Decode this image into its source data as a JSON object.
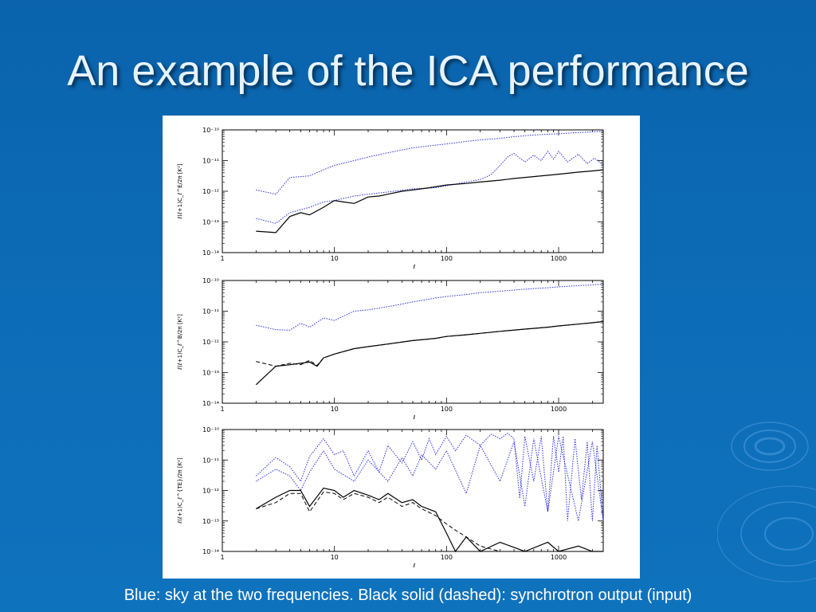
{
  "slide": {
    "title": "An example of the ICA performance",
    "caption": "Blue: sky at the two frequencies. Black solid (dashed): synchrotron output (input)"
  },
  "colors": {
    "background": "#0d6cb7",
    "sky": "#2a2ee0",
    "synchrotron": "#000000"
  },
  "chart_data": [
    {
      "type": "line",
      "xscale": "log",
      "yscale": "log",
      "xlim": [
        1,
        2500
      ],
      "ylim": [
        1e-14,
        1e-10
      ],
      "xlabel": "ℓ",
      "ylabel": "ℓ(ℓ+1)C_ℓ^E/2π [K²]",
      "xticks": [
        "1",
        "10",
        "100",
        "1000"
      ],
      "yticks": [
        "10⁻¹⁴",
        "10⁻¹³",
        "10⁻¹²",
        "10⁻¹¹",
        "10⁻¹⁰"
      ],
      "series": [
        {
          "style": "dotted",
          "color": "#2a2ee0",
          "x": [
            2,
            3,
            4,
            6,
            8,
            10,
            15,
            20,
            30,
            50,
            80,
            100,
            150,
            200,
            300,
            400,
            600,
            1000,
            1500,
            2000,
            2500
          ],
          "y": [
            1.1e-12,
            8e-13,
            2.8e-12,
            3.2e-12,
            5e-12,
            7e-12,
            1e-11,
            1.3e-11,
            1.8e-11,
            2.6e-11,
            3.2e-11,
            3.5e-11,
            4.2e-11,
            4.7e-11,
            5.3e-11,
            6e-11,
            6.8e-11,
            7.5e-11,
            8.2e-11,
            8.6e-11,
            9e-11
          ]
        },
        {
          "style": "dotted",
          "color": "#2a2ee0",
          "x": [
            2,
            3,
            4,
            6,
            8,
            10,
            15,
            20,
            30,
            50,
            80,
            100,
            150,
            200,
            250,
            300,
            350,
            400,
            500,
            600,
            700,
            800,
            900,
            1000,
            1200,
            1500,
            1800,
            2100,
            2500
          ],
          "y": [
            1.3e-13,
            9e-14,
            2e-13,
            3e-13,
            4.5e-13,
            5e-13,
            7e-13,
            8e-13,
            9.5e-13,
            1.2e-12,
            1.3e-12,
            1.5e-12,
            2e-12,
            2.4e-12,
            3.5e-12,
            7e-12,
            1.3e-11,
            1.7e-11,
            9e-12,
            1.5e-11,
            1e-11,
            2e-11,
            1.1e-11,
            2e-11,
            9e-12,
            1.6e-11,
            8e-12,
            1.2e-11,
            7e-12
          ]
        },
        {
          "style": "solid",
          "color": "#000000",
          "x": [
            2,
            3,
            4,
            5,
            6,
            8,
            10,
            12,
            15,
            20,
            25,
            30,
            40,
            50,
            70,
            100,
            150,
            200,
            300,
            400,
            600,
            1000,
            1500,
            2000,
            2500
          ],
          "y": [
            5e-14,
            4.5e-14,
            1.5e-13,
            2e-13,
            1.7e-13,
            3e-13,
            5e-13,
            4.5e-13,
            4e-13,
            6.5e-13,
            7e-13,
            8e-13,
            1e-12,
            1.1e-12,
            1.3e-12,
            1.6e-12,
            1.8e-12,
            2e-12,
            2.3e-12,
            2.6e-12,
            3e-12,
            3.6e-12,
            4.2e-12,
            4.6e-12,
            5e-12
          ]
        }
      ]
    },
    {
      "type": "line",
      "xscale": "log",
      "yscale": "log",
      "xlim": [
        1,
        2500
      ],
      "ylim": [
        1e-14,
        1e-10
      ],
      "xlabel": "ℓ",
      "ylabel": "ℓ(ℓ+1)C_ℓ^B/2π [K²]",
      "xticks": [
        "1",
        "10",
        "100",
        "1000"
      ],
      "yticks": [
        "10⁻¹⁴",
        "10⁻¹³",
        "10⁻¹²",
        "10⁻¹¹",
        "10⁻¹⁰"
      ],
      "series": [
        {
          "style": "dotted",
          "color": "#2a2ee0",
          "x": [
            2,
            3,
            4,
            5,
            6,
            8,
            10,
            15,
            20,
            30,
            50,
            80,
            100,
            150,
            200,
            300,
            500,
            800,
            1000,
            1500,
            2000,
            2500
          ],
          "y": [
            3.5e-12,
            2.5e-12,
            2.4e-12,
            4e-12,
            3e-12,
            6e-12,
            5e-12,
            1e-11,
            1.1e-11,
            1.4e-11,
            2e-11,
            2.7e-11,
            3e-11,
            3.5e-11,
            4e-11,
            4.5e-11,
            5.2e-11,
            5.8e-11,
            6.2e-11,
            6.8e-11,
            7.2e-11,
            7.6e-11
          ]
        },
        {
          "style": "dashed",
          "color": "#000000",
          "x": [
            2,
            3,
            4,
            5,
            6,
            7,
            8,
            10,
            15,
            20,
            30,
            50,
            80,
            100,
            150,
            200,
            300,
            500,
            800,
            1000,
            1500,
            2000,
            2500
          ],
          "y": [
            2.3e-13,
            1.6e-13,
            2e-13,
            1.8e-13,
            2.5e-13,
            1.7e-13,
            3e-13,
            4e-13,
            6e-13,
            7e-13,
            8.5e-13,
            1.1e-12,
            1.3e-12,
            1.5e-12,
            1.7e-12,
            1.9e-12,
            2.2e-12,
            2.6e-12,
            3e-12,
            3.3e-12,
            3.8e-12,
            4.2e-12,
            4.6e-12
          ]
        },
        {
          "style": "solid",
          "color": "#000000",
          "x": [
            2,
            3,
            4,
            5,
            6,
            7,
            8,
            10,
            15,
            20,
            30,
            50,
            80,
            100,
            150,
            200,
            300,
            500,
            800,
            1000,
            1500,
            2000,
            2500
          ],
          "y": [
            4e-14,
            1.6e-13,
            1.8e-13,
            2e-13,
            2.2e-13,
            1.6e-13,
            3e-13,
            4e-13,
            6e-13,
            7e-13,
            8.5e-13,
            1.1e-12,
            1.3e-12,
            1.5e-12,
            1.7e-12,
            1.9e-12,
            2.2e-12,
            2.6e-12,
            3e-12,
            3.3e-12,
            3.8e-12,
            4.2e-12,
            4.6e-12
          ]
        }
      ]
    },
    {
      "type": "line",
      "xscale": "log",
      "yscale": "log",
      "xlim": [
        1,
        2500
      ],
      "ylim": [
        1e-14,
        1e-10
      ],
      "xlabel": "ℓ",
      "ylabel": "ℓ(ℓ+1)C_ℓ^{TE}/2π [K²]",
      "xticks": [
        "1",
        "10",
        "100",
        "1000"
      ],
      "yticks": [
        "10⁻¹⁴",
        "10⁻¹³",
        "10⁻¹²",
        "10⁻¹¹",
        "10⁻¹⁰"
      ],
      "series": [
        {
          "style": "dotted",
          "color": "#2a2ee0",
          "x": [
            2,
            3,
            4,
            5,
            6,
            8,
            10,
            12,
            15,
            20,
            25,
            30,
            40,
            50,
            60,
            70,
            80,
            100,
            120,
            150,
            200,
            250,
            300,
            350,
            400,
            450,
            500,
            600,
            700,
            800,
            900,
            1000,
            1100,
            1200,
            1400,
            1600,
            1800,
            2000,
            2200,
            2500
          ],
          "y": [
            3e-12,
            1.2e-11,
            6e-12,
            2e-12,
            1.3e-11,
            5e-11,
            1.5e-11,
            2e-11,
            3e-12,
            2e-11,
            4e-12,
            3e-11,
            8e-12,
            4e-11,
            1e-11,
            5e-11,
            1.5e-11,
            6e-11,
            2e-11,
            6.5e-11,
            3e-11,
            7e-11,
            5e-11,
            7.5e-11,
            5e-11,
            5.5e-13,
            6e-11,
            2e-12,
            6e-11,
            2e-13,
            6e-11,
            4e-12,
            6e-11,
            1e-13,
            5e-11,
            5e-13,
            4e-11,
            1e-13,
            3e-11,
            1e-13
          ]
        },
        {
          "style": "dotted",
          "color": "#2a2ee0",
          "x": [
            2,
            3,
            4,
            5,
            6,
            8,
            10,
            15,
            20,
            30,
            40,
            50,
            60,
            80,
            100,
            150,
            200,
            300,
            400,
            500,
            600,
            800,
            1000,
            1500,
            2000,
            2500
          ],
          "y": [
            2e-12,
            5e-12,
            3e-12,
            1e-12,
            4e-12,
            2e-11,
            5e-12,
            2e-12,
            1e-11,
            2e-12,
            1.2e-11,
            3e-12,
            1.5e-11,
            5e-12,
            2e-11,
            8e-13,
            3e-11,
            2e-12,
            4e-11,
            3e-13,
            5e-11,
            2e-13,
            6e-11,
            1e-13,
            4e-11,
            1e-13
          ]
        },
        {
          "style": "solid",
          "color": "#000000",
          "x": [
            2,
            3,
            4,
            5,
            6,
            8,
            10,
            12,
            15,
            20,
            25,
            30,
            40,
            50,
            60,
            80,
            100,
            120,
            150,
            200,
            300,
            500,
            800,
            1000,
            1500,
            2000,
            2500
          ],
          "y": [
            2.5e-13,
            6e-13,
            1e-12,
            1e-12,
            3e-13,
            1.2e-12,
            1e-12,
            6e-13,
            1e-12,
            7e-13,
            5e-13,
            8e-13,
            4e-13,
            5e-13,
            3e-13,
            2e-13,
            4e-14,
            1e-14,
            3e-14,
            1e-14,
            2e-14,
            1e-14,
            2e-14,
            1e-14,
            1.5e-14,
            1e-14,
            1e-14
          ]
        },
        {
          "style": "dashed",
          "color": "#000000",
          "x": [
            2,
            3,
            4,
            5,
            6,
            8,
            10,
            12,
            15,
            20,
            25,
            30,
            40,
            50,
            60,
            80,
            100,
            120,
            150,
            200,
            300,
            500,
            800,
            1000,
            1500,
            2000,
            2500
          ],
          "y": [
            2.5e-13,
            4e-13,
            8e-13,
            8e-13,
            2e-13,
            9e-13,
            8e-13,
            5e-13,
            8e-13,
            6e-13,
            4e-13,
            6e-13,
            3e-13,
            4e-13,
            2.5e-13,
            1.5e-13,
            8e-14,
            5e-14,
            3e-14,
            1.5e-14,
            1e-14,
            1e-14,
            1e-14,
            1e-14,
            1e-14,
            1e-14,
            1e-14
          ]
        }
      ]
    }
  ]
}
